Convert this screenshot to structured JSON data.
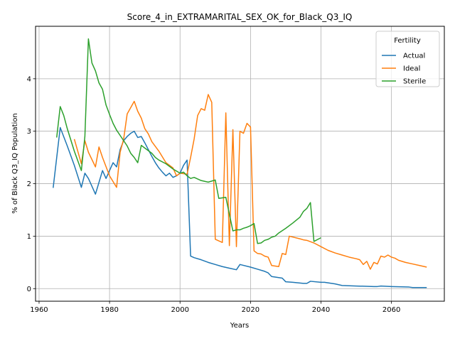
{
  "chart_data": {
    "type": "line",
    "title": "Score_4_in_EXTRAMARITAL_SEX_OK_for_Black_Q3_IQ",
    "xlabel": "Years",
    "ylabel": "% of Black Q3_IQ Population",
    "xlim": [
      1959,
      2075
    ],
    "ylim": [
      -0.24,
      5.0
    ],
    "xticks": [
      1960,
      1980,
      2000,
      2020,
      2040,
      2060
    ],
    "yticks": [
      0,
      1,
      2,
      3,
      4
    ],
    "grid": true,
    "legend": {
      "title": "Fertility",
      "placement": "top-right"
    },
    "series": [
      {
        "name": "Actual",
        "color": "#1f77b4",
        "points": [
          [
            1964,
            1.92
          ],
          [
            1966,
            3.07
          ],
          [
            1968,
            2.72
          ],
          [
            1970,
            2.35
          ],
          [
            1972,
            1.93
          ],
          [
            1973,
            2.2
          ],
          [
            1974,
            2.1
          ],
          [
            1976,
            1.8
          ],
          [
            1978,
            2.25
          ],
          [
            1979,
            2.1
          ],
          [
            1980,
            2.25
          ],
          [
            1981,
            2.4
          ],
          [
            1982,
            2.32
          ],
          [
            1983,
            2.65
          ],
          [
            1984,
            2.82
          ],
          [
            1985,
            2.9
          ],
          [
            1986,
            2.96
          ],
          [
            1987,
            3.0
          ],
          [
            1988,
            2.88
          ],
          [
            1989,
            2.9
          ],
          [
            1990,
            2.78
          ],
          [
            1991,
            2.65
          ],
          [
            1992,
            2.52
          ],
          [
            1993,
            2.4
          ],
          [
            1994,
            2.3
          ],
          [
            1995,
            2.22
          ],
          [
            1996,
            2.15
          ],
          [
            1997,
            2.2
          ],
          [
            1998,
            2.12
          ],
          [
            1999,
            2.15
          ],
          [
            2000,
            2.2
          ],
          [
            2001,
            2.35
          ],
          [
            2002,
            2.45
          ],
          [
            2003,
            0.62
          ],
          [
            2004,
            0.59
          ],
          [
            2006,
            0.55
          ],
          [
            2008,
            0.5
          ],
          [
            2010,
            0.46
          ],
          [
            2012,
            0.42
          ],
          [
            2014,
            0.39
          ],
          [
            2016,
            0.36
          ],
          [
            2017,
            0.46
          ],
          [
            2020,
            0.41
          ],
          [
            2022,
            0.37
          ],
          [
            2024,
            0.33
          ],
          [
            2025,
            0.3
          ],
          [
            2026,
            0.23
          ],
          [
            2027,
            0.22
          ],
          [
            2029,
            0.2
          ],
          [
            2030,
            0.13
          ],
          [
            2032,
            0.12
          ],
          [
            2035,
            0.1
          ],
          [
            2036,
            0.1
          ],
          [
            2037,
            0.14
          ],
          [
            2040,
            0.12
          ],
          [
            2041,
            0.12
          ],
          [
            2044,
            0.09
          ],
          [
            2046,
            0.06
          ],
          [
            2050,
            0.05
          ],
          [
            2055,
            0.04
          ],
          [
            2056,
            0.04
          ],
          [
            2057,
            0.05
          ],
          [
            2060,
            0.04
          ],
          [
            2065,
            0.03
          ],
          [
            2066,
            0.02
          ],
          [
            2070,
            0.02
          ]
        ]
      },
      {
        "name": "Ideal",
        "color": "#ff7f0e",
        "points": [
          [
            1970,
            2.85
          ],
          [
            1972,
            2.38
          ],
          [
            1973,
            2.82
          ],
          [
            1974,
            2.6
          ],
          [
            1976,
            2.32
          ],
          [
            1977,
            2.7
          ],
          [
            1978,
            2.5
          ],
          [
            1980,
            2.15
          ],
          [
            1982,
            1.93
          ],
          [
            1983,
            2.6
          ],
          [
            1984,
            2.85
          ],
          [
            1985,
            3.33
          ],
          [
            1987,
            3.57
          ],
          [
            1988,
            3.38
          ],
          [
            1989,
            3.25
          ],
          [
            1990,
            3.05
          ],
          [
            1991,
            2.95
          ],
          [
            1992,
            2.8
          ],
          [
            1994,
            2.62
          ],
          [
            1996,
            2.4
          ],
          [
            1998,
            2.3
          ],
          [
            1999,
            2.15
          ],
          [
            2000,
            2.2
          ],
          [
            2002,
            2.18
          ],
          [
            2003,
            2.5
          ],
          [
            2004,
            2.85
          ],
          [
            2005,
            3.3
          ],
          [
            2006,
            3.43
          ],
          [
            2007,
            3.4
          ],
          [
            2008,
            3.7
          ],
          [
            2009,
            3.55
          ],
          [
            2010,
            0.94
          ],
          [
            2012,
            0.88
          ],
          [
            2013,
            3.35
          ],
          [
            2014,
            0.82
          ],
          [
            2015,
            3.03
          ],
          [
            2016,
            0.8
          ],
          [
            2017,
            3.0
          ],
          [
            2018,
            2.96
          ],
          [
            2019,
            3.15
          ],
          [
            2020,
            3.08
          ],
          [
            2021,
            0.72
          ],
          [
            2022,
            0.67
          ],
          [
            2023,
            0.66
          ],
          [
            2024,
            0.62
          ],
          [
            2025,
            0.6
          ],
          [
            2026,
            0.44
          ],
          [
            2028,
            0.42
          ],
          [
            2029,
            0.67
          ],
          [
            2030,
            0.65
          ],
          [
            2031,
            1.0
          ],
          [
            2034,
            0.95
          ],
          [
            2035,
            0.93
          ],
          [
            2036,
            0.92
          ],
          [
            2038,
            0.87
          ],
          [
            2040,
            0.8
          ],
          [
            2042,
            0.73
          ],
          [
            2044,
            0.68
          ],
          [
            2046,
            0.64
          ],
          [
            2048,
            0.6
          ],
          [
            2050,
            0.57
          ],
          [
            2051,
            0.55
          ],
          [
            2052,
            0.46
          ],
          [
            2053,
            0.52
          ],
          [
            2054,
            0.37
          ],
          [
            2055,
            0.5
          ],
          [
            2056,
            0.47
          ],
          [
            2057,
            0.62
          ],
          [
            2058,
            0.6
          ],
          [
            2059,
            0.64
          ],
          [
            2060,
            0.6
          ],
          [
            2061,
            0.58
          ],
          [
            2062,
            0.54
          ],
          [
            2064,
            0.5
          ],
          [
            2066,
            0.47
          ],
          [
            2068,
            0.44
          ],
          [
            2070,
            0.41
          ]
        ]
      },
      {
        "name": "Sterile",
        "color": "#2ca02c",
        "points": [
          [
            1965,
            2.88
          ],
          [
            1966,
            3.47
          ],
          [
            1967,
            3.3
          ],
          [
            1968,
            3.05
          ],
          [
            1970,
            2.62
          ],
          [
            1972,
            2.25
          ],
          [
            1973,
            2.9
          ],
          [
            1974,
            4.76
          ],
          [
            1975,
            4.3
          ],
          [
            1976,
            4.15
          ],
          [
            1977,
            3.92
          ],
          [
            1978,
            3.8
          ],
          [
            1979,
            3.5
          ],
          [
            1980,
            3.32
          ],
          [
            1981,
            3.15
          ],
          [
            1982,
            3.02
          ],
          [
            1983,
            2.92
          ],
          [
            1984,
            2.82
          ],
          [
            1985,
            2.72
          ],
          [
            1986,
            2.58
          ],
          [
            1987,
            2.5
          ],
          [
            1988,
            2.4
          ],
          [
            1989,
            2.73
          ],
          [
            1990,
            2.68
          ],
          [
            1992,
            2.58
          ],
          [
            1993,
            2.5
          ],
          [
            1994,
            2.45
          ],
          [
            1996,
            2.38
          ],
          [
            1998,
            2.28
          ],
          [
            2000,
            2.2
          ],
          [
            2001,
            2.22
          ],
          [
            2002,
            2.15
          ],
          [
            2003,
            2.1
          ],
          [
            2004,
            2.12
          ],
          [
            2006,
            2.06
          ],
          [
            2008,
            2.03
          ],
          [
            2010,
            2.07
          ],
          [
            2011,
            1.72
          ],
          [
            2013,
            1.74
          ],
          [
            2015,
            1.1
          ],
          [
            2016,
            1.12
          ],
          [
            2017,
            1.12
          ],
          [
            2018,
            1.15
          ],
          [
            2019,
            1.17
          ],
          [
            2020,
            1.2
          ],
          [
            2021,
            1.24
          ],
          [
            2022,
            0.86
          ],
          [
            2023,
            0.87
          ],
          [
            2024,
            0.92
          ],
          [
            2025,
            0.94
          ],
          [
            2026,
            0.98
          ],
          [
            2027,
            1.0
          ],
          [
            2028,
            1.06
          ],
          [
            2030,
            1.15
          ],
          [
            2032,
            1.25
          ],
          [
            2034,
            1.36
          ],
          [
            2035,
            1.47
          ],
          [
            2036,
            1.53
          ],
          [
            2037,
            1.64
          ],
          [
            2038,
            0.9
          ],
          [
            2040,
            0.97
          ]
        ]
      }
    ]
  }
}
